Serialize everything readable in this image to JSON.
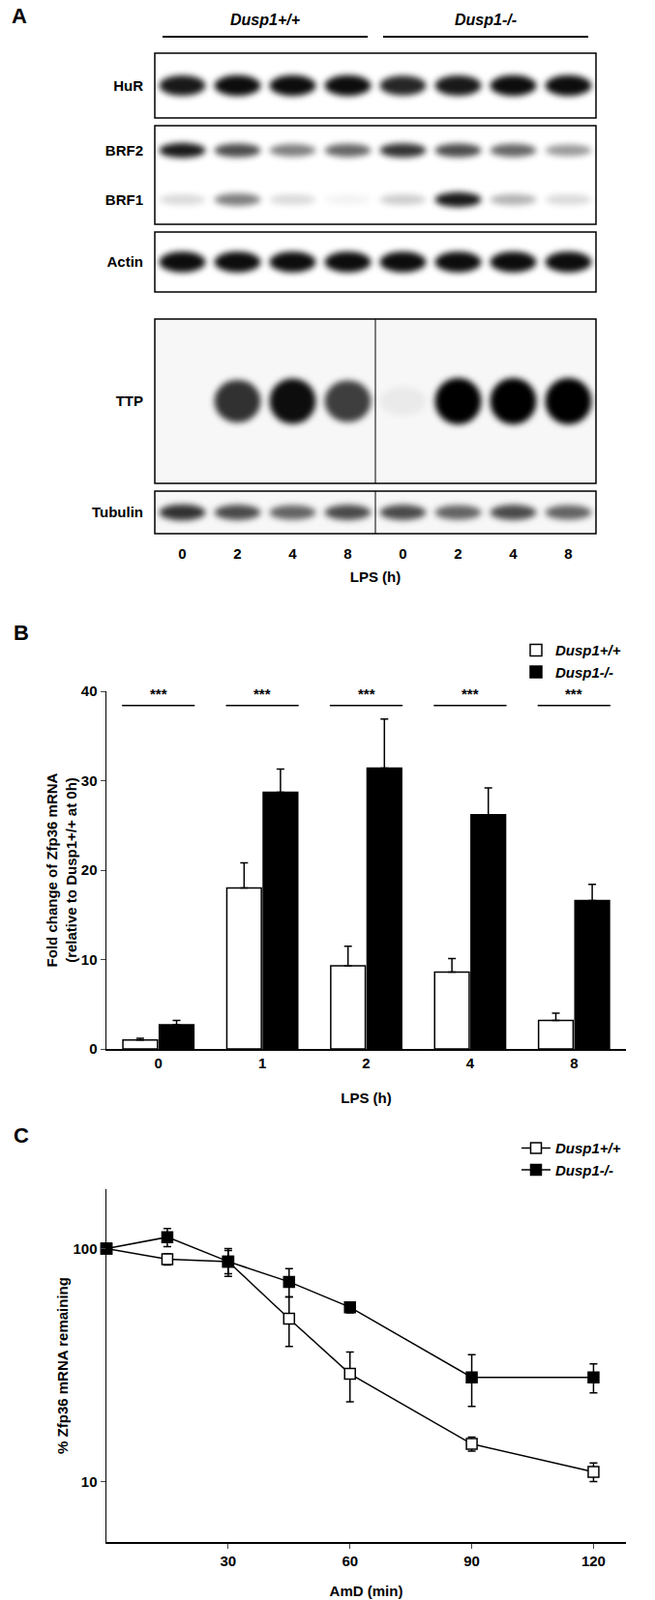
{
  "blot": {
    "panel_label": "A",
    "groups": [
      "Dusp1+/+",
      "Dusp1-/-"
    ],
    "lanes": [
      0,
      2,
      4,
      8,
      0,
      2,
      4,
      8
    ],
    "lane_axis_label": "LPS (h)",
    "boxes": [
      {
        "rows": [
          {
            "label": "HuR",
            "intensity": [
              0.9,
              0.95,
              0.95,
              0.95,
              0.85,
              0.9,
              0.95,
              0.95
            ]
          }
        ]
      },
      {
        "rows": [
          {
            "label": "BRF2",
            "intensity": [
              0.9,
              0.7,
              0.5,
              0.6,
              0.8,
              0.7,
              0.6,
              0.4
            ]
          },
          {
            "label": "BRF1",
            "intensity": [
              0.15,
              0.5,
              0.15,
              0.05,
              0.2,
              0.9,
              0.3,
              0.15
            ]
          }
        ]
      },
      {
        "rows": [
          {
            "label": "Actin",
            "intensity": [
              0.95,
              0.95,
              0.95,
              0.95,
              0.95,
              0.95,
              0.95,
              0.95
            ]
          }
        ]
      },
      {
        "rows": [
          {
            "label": "TTP",
            "intensity": [
              0.0,
              0.8,
              0.95,
              0.75,
              0.05,
              1.0,
              1.0,
              1.0
            ]
          }
        ],
        "split": true
      },
      {
        "rows": [
          {
            "label": "Tubulin",
            "intensity": [
              0.8,
              0.7,
              0.6,
              0.7,
              0.7,
              0.6,
              0.7,
              0.6
            ]
          }
        ],
        "split": true
      }
    ]
  },
  "chart_data": [
    {
      "panel_label": "B",
      "type": "bar",
      "categories": [
        "0",
        "1",
        "2",
        "4",
        "8"
      ],
      "x_label": "LPS (h)",
      "y_label": "Fold change of Zfp36 mRNA\n(relative to Dusp1+/+ at 0h)",
      "series": [
        {
          "name": "Dusp1+/+",
          "color": "#ffffff",
          "values": [
            1.0,
            18.0,
            9.3,
            8.6,
            3.2
          ],
          "errors": [
            0.2,
            2.8,
            2.2,
            1.5,
            0.8
          ]
        },
        {
          "name": "Dusp1-/-",
          "color": "#000000",
          "values": [
            2.7,
            28.7,
            31.4,
            26.2,
            16.6
          ],
          "errors": [
            0.5,
            2.6,
            5.5,
            3.0,
            1.8
          ]
        }
      ],
      "annotations": [
        "***",
        "***",
        "***",
        "***",
        "***"
      ],
      "ylim": [
        0,
        40
      ],
      "yticks": [
        0,
        10,
        20,
        30,
        40
      ],
      "grid": false,
      "legend": "top right"
    },
    {
      "panel_label": "C",
      "type": "line",
      "x": [
        0,
        15,
        30,
        45,
        60,
        90,
        120
      ],
      "x_label": "AmD (min)",
      "y_label": "% Zfp36 mRNA remaining",
      "series": [
        {
          "name": "Dusp1+/+",
          "color": "#ffffff",
          "marker": "square",
          "values": [
            100,
            90,
            88,
            50,
            29,
            14.5,
            11
          ],
          "errors": [
            0,
            5,
            10,
            12,
            7,
            1,
            1
          ]
        },
        {
          "name": "Dusp1-/-",
          "color": "#000000",
          "marker": "square",
          "values": [
            100,
            112,
            88,
            72,
            56,
            28,
            28
          ],
          "errors": [
            0,
            10,
            12,
            10,
            3,
            7,
            4
          ]
        }
      ],
      "xlim": [
        0,
        128
      ],
      "xticks": [
        30,
        60,
        90,
        120
      ],
      "ylim": [
        5.5,
        180
      ],
      "yticks": [
        10,
        100
      ],
      "log": "y",
      "grid": false,
      "legend": "top right"
    }
  ]
}
